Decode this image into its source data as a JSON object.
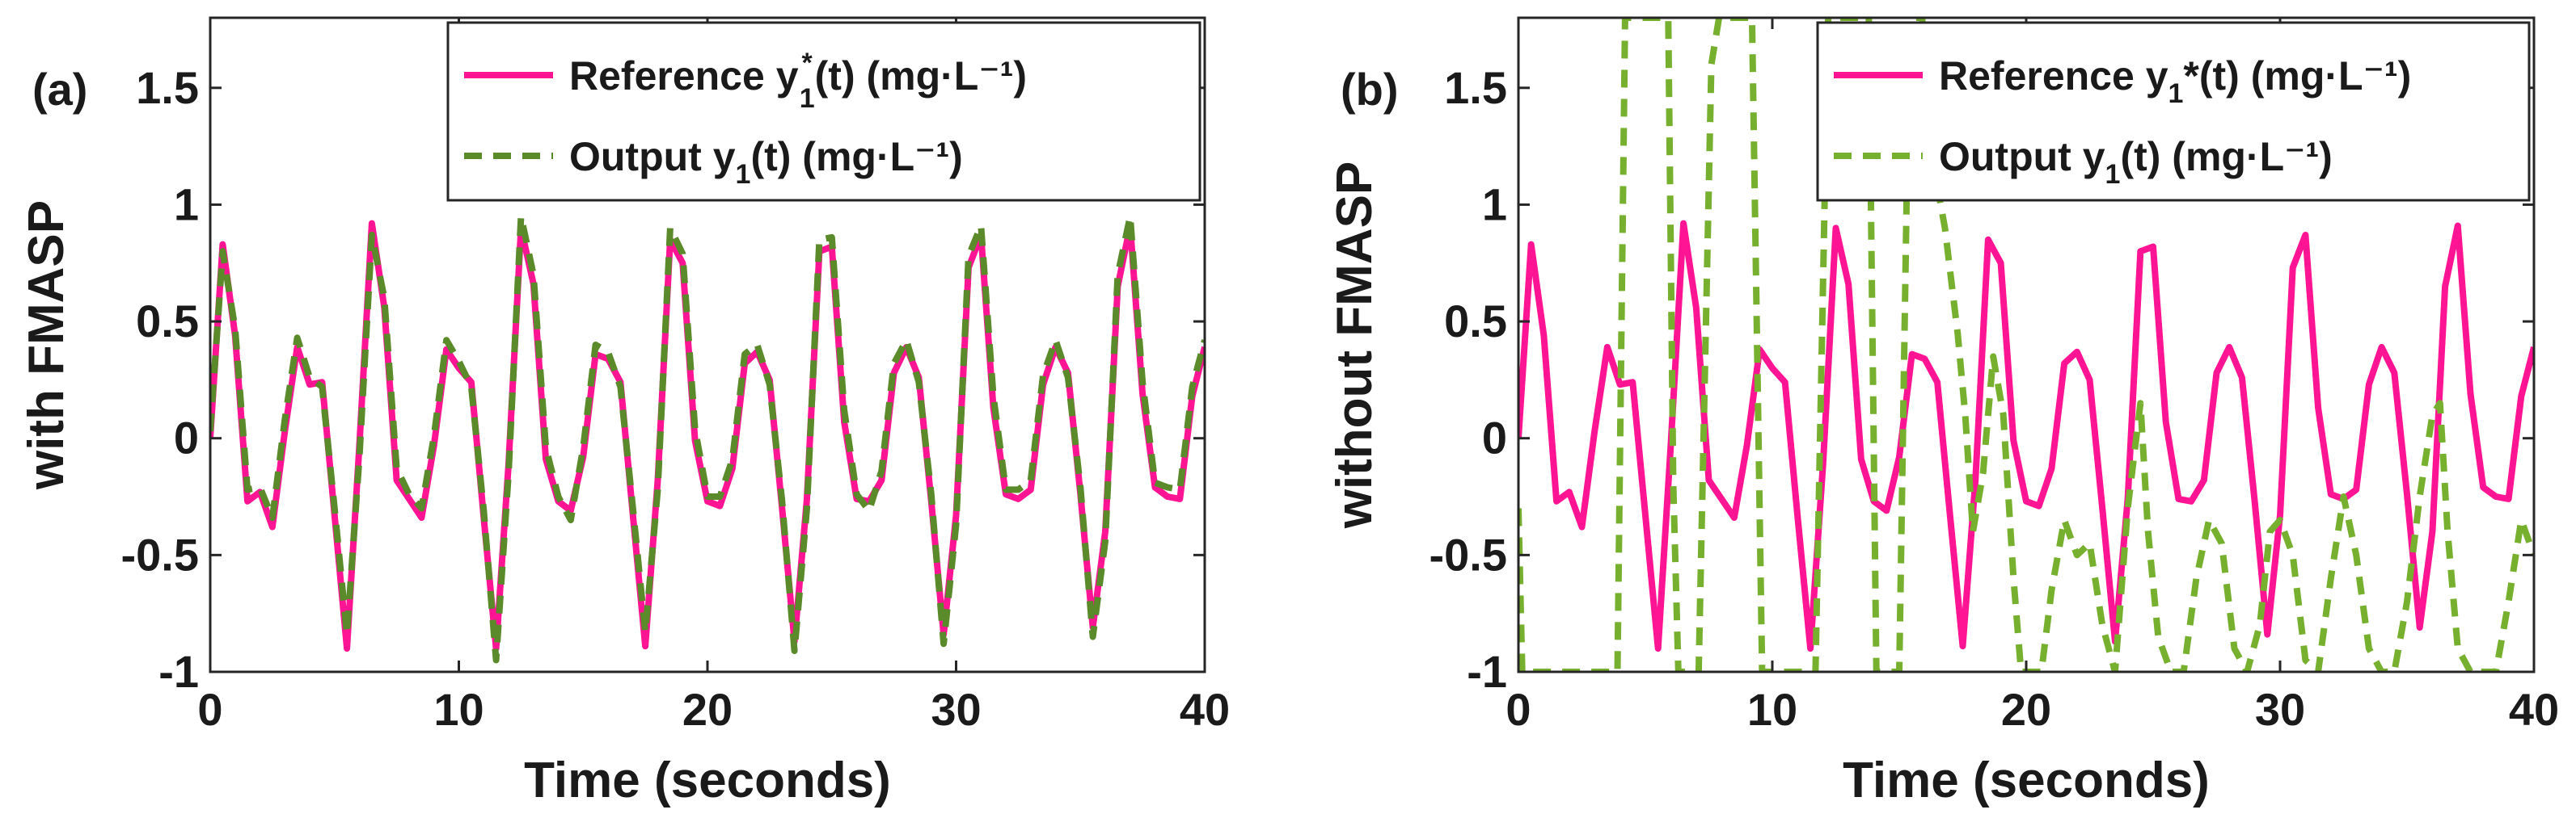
{
  "colors": {
    "reference": "#ff1493",
    "output_a": "#5a8a2a",
    "output_b": "#77b02f",
    "axis": "#262626"
  },
  "chart_data": [
    {
      "type": "line",
      "panel_label": "(a)",
      "xlabel": "Time (seconds)",
      "ylabel": "with FMASP",
      "xlim": [
        0,
        40
      ],
      "ylim": [
        -1,
        1.8
      ],
      "x_ticks": [
        0,
        10,
        20,
        30,
        40
      ],
      "x_tick_labels": [
        "0",
        "10",
        "20",
        "30",
        "40"
      ],
      "y_ticks": [
        -1,
        -0.5,
        0,
        0.5,
        1,
        1.5
      ],
      "y_tick_labels": [
        "-1",
        "-0.5",
        "0",
        "0.5",
        "1",
        "1.5"
      ],
      "grid": false,
      "legend_position": "top-right",
      "legend": [
        {
          "label_prefix": "Reference y",
          "label_sup": "*",
          "label_sub": "1",
          "label_suffix": "(t) (mg·L⁻¹)",
          "style": "solid"
        },
        {
          "label_prefix": "Output y",
          "label_sub": "1",
          "label_suffix": "(t) (mg·L⁻¹)",
          "style": "dashed"
        }
      ],
      "series": [
        {
          "name": "Reference",
          "style": "solid",
          "x": [
            0,
            0.5,
            1,
            1.5,
            2,
            2.5,
            3,
            3.5,
            4,
            4.5,
            5,
            5.5,
            6,
            6.5,
            7,
            7.5,
            8,
            8.5,
            9,
            9.5,
            10,
            10.5,
            11,
            11.5,
            12,
            12.5,
            13,
            13.5,
            14,
            14.5,
            15,
            15.5,
            16,
            16.5,
            17,
            17.5,
            18,
            18.5,
            19,
            19.5,
            20,
            20.5,
            21,
            21.5,
            22,
            22.5,
            23,
            23.5,
            24,
            24.5,
            25,
            25.5,
            26,
            26.5,
            27,
            27.5,
            28,
            28.5,
            29,
            29.5,
            30,
            30.5,
            31,
            31.5,
            32,
            32.5,
            33,
            33.5,
            34,
            34.5,
            35,
            35.5,
            36,
            36.5,
            37,
            37.5,
            38,
            38.5,
            39,
            39.5,
            40
          ],
          "y": [
            0,
            0.83,
            0.44,
            -0.27,
            -0.23,
            -0.38,
            0.03,
            0.39,
            0.23,
            0.24,
            -0.33,
            -0.9,
            -0.03,
            0.92,
            0.56,
            -0.18,
            -0.26,
            -0.34,
            -0.03,
            0.38,
            0.3,
            0.24,
            -0.34,
            -0.9,
            -0.11,
            0.9,
            0.66,
            -0.09,
            -0.27,
            -0.31,
            -0.08,
            0.36,
            0.34,
            0.24,
            -0.33,
            -0.89,
            -0.18,
            0.85,
            0.75,
            -0.01,
            -0.27,
            -0.29,
            -0.13,
            0.32,
            0.37,
            0.25,
            -0.3,
            -0.87,
            -0.26,
            0.8,
            0.82,
            0.07,
            -0.26,
            -0.27,
            -0.18,
            0.28,
            0.39,
            0.26,
            -0.27,
            -0.84,
            -0.33,
            0.73,
            0.87,
            0.13,
            -0.24,
            -0.26,
            -0.22,
            0.23,
            0.39,
            0.28,
            -0.24,
            -0.81,
            -0.4,
            0.65,
            0.91,
            0.19,
            -0.21,
            -0.25,
            -0.26,
            0.18,
            0.39
          ]
        },
        {
          "name": "Output",
          "style": "dashed",
          "x": [
            0,
            0.5,
            1,
            1.5,
            2,
            2.5,
            3,
            3.5,
            4,
            4.5,
            5,
            5.5,
            6,
            6.5,
            7,
            7.5,
            8,
            8.5,
            9,
            9.5,
            10,
            10.5,
            11,
            11.5,
            12,
            12.5,
            13,
            13.5,
            14,
            14.5,
            15,
            15.5,
            16,
            16.5,
            17,
            17.5,
            18,
            18.5,
            19,
            19.5,
            20,
            20.5,
            21,
            21.5,
            22,
            22.5,
            23,
            23.5,
            24,
            24.5,
            25,
            25.5,
            26,
            26.5,
            27,
            27.5,
            28,
            28.5,
            29,
            29.5,
            30,
            30.5,
            31,
            31.5,
            32,
            32.5,
            33,
            33.5,
            34,
            34.5,
            35,
            35.5,
            36,
            36.5,
            37,
            37.5,
            38,
            38.5,
            39,
            39.5,
            40
          ],
          "y": [
            0.03,
            0.8,
            0.47,
            -0.22,
            -0.21,
            -0.34,
            0.08,
            0.43,
            0.26,
            0.22,
            -0.3,
            -0.84,
            -0.08,
            0.87,
            0.6,
            -0.13,
            -0.24,
            -0.3,
            0.01,
            0.42,
            0.33,
            0.22,
            -0.31,
            -0.95,
            -0.15,
            0.95,
            0.7,
            -0.04,
            -0.25,
            -0.35,
            -0.04,
            0.4,
            0.37,
            0.22,
            -0.3,
            -0.83,
            -0.22,
            0.9,
            0.79,
            0.04,
            -0.25,
            -0.25,
            -0.09,
            0.36,
            0.4,
            0.23,
            -0.27,
            -0.91,
            -0.3,
            0.85,
            0.86,
            0.12,
            -0.24,
            -0.31,
            -0.14,
            0.32,
            0.42,
            0.24,
            -0.24,
            -0.88,
            -0.37,
            0.78,
            0.91,
            0.18,
            -0.22,
            -0.22,
            -0.18,
            0.27,
            0.42,
            0.26,
            -0.21,
            -0.85,
            -0.44,
            0.7,
            0.95,
            0.24,
            -0.19,
            -0.21,
            -0.22,
            0.22,
            0.42
          ]
        }
      ]
    },
    {
      "type": "line",
      "panel_label": "(b)",
      "xlabel": "Time (seconds)",
      "ylabel": "without FMASP",
      "xlim": [
        0,
        40
      ],
      "ylim": [
        -1,
        1.8
      ],
      "x_ticks": [
        0,
        10,
        20,
        30,
        40
      ],
      "x_tick_labels": [
        "0",
        "10",
        "20",
        "30",
        "40"
      ],
      "y_ticks": [
        -1,
        -0.5,
        0,
        0.5,
        1,
        1.5
      ],
      "y_tick_labels": [
        "-1",
        "-0.5",
        "0",
        "0.5",
        "1",
        "1.5"
      ],
      "grid": false,
      "legend_position": "top-right",
      "legend": [
        {
          "label_prefix": "Reference y",
          "label_sub": "1",
          "label_suffix": "*(t) (mg·L⁻¹)",
          "style": "solid"
        },
        {
          "label_prefix": "Output y",
          "label_sub": "1",
          "label_suffix": "(t) (mg·L⁻¹)",
          "style": "dashed"
        }
      ],
      "series": [
        {
          "name": "Reference",
          "style": "solid",
          "x": [
            0,
            0.5,
            1,
            1.5,
            2,
            2.5,
            3,
            3.5,
            4,
            4.5,
            5,
            5.5,
            6,
            6.5,
            7,
            7.5,
            8,
            8.5,
            9,
            9.5,
            10,
            10.5,
            11,
            11.5,
            12,
            12.5,
            13,
            13.5,
            14,
            14.5,
            15,
            15.5,
            16,
            16.5,
            17,
            17.5,
            18,
            18.5,
            19,
            19.5,
            20,
            20.5,
            21,
            21.5,
            22,
            22.5,
            23,
            23.5,
            24,
            24.5,
            25,
            25.5,
            26,
            26.5,
            27,
            27.5,
            28,
            28.5,
            29,
            29.5,
            30,
            30.5,
            31,
            31.5,
            32,
            32.5,
            33,
            33.5,
            34,
            34.5,
            35,
            35.5,
            36,
            36.5,
            37,
            37.5,
            38,
            38.5,
            39,
            39.5,
            40
          ],
          "y": [
            0,
            0.83,
            0.44,
            -0.27,
            -0.23,
            -0.38,
            0.03,
            0.39,
            0.23,
            0.24,
            -0.33,
            -0.9,
            -0.03,
            0.92,
            0.56,
            -0.18,
            -0.26,
            -0.34,
            -0.03,
            0.38,
            0.3,
            0.24,
            -0.34,
            -0.9,
            -0.11,
            0.9,
            0.66,
            -0.09,
            -0.27,
            -0.31,
            -0.08,
            0.36,
            0.34,
            0.24,
            -0.33,
            -0.89,
            -0.18,
            0.85,
            0.75,
            -0.01,
            -0.27,
            -0.29,
            -0.13,
            0.32,
            0.37,
            0.25,
            -0.3,
            -0.87,
            -0.26,
            0.8,
            0.82,
            0.07,
            -0.26,
            -0.27,
            -0.18,
            0.28,
            0.39,
            0.26,
            -0.27,
            -0.84,
            -0.33,
            0.73,
            0.87,
            0.13,
            -0.24,
            -0.26,
            -0.22,
            0.23,
            0.39,
            0.28,
            -0.24,
            -0.81,
            -0.4,
            0.65,
            0.91,
            0.19,
            -0.21,
            -0.25,
            -0.26,
            0.18,
            0.39
          ]
        },
        {
          "name": "Output",
          "style": "dashed",
          "x": [
            0,
            0.15,
            0.3,
            0.6,
            1,
            1.5,
            2,
            2.5,
            3,
            3.5,
            3.9,
            4.2,
            5,
            5.4,
            5.6,
            5.9,
            6.1,
            6.3,
            6.6,
            7.1,
            7.6,
            7.9,
            8.3,
            8.7,
            9.2,
            9.6,
            9.9,
            10.4,
            11,
            11.5,
            11.7,
            12.2,
            12.8,
            13.3,
            13.8,
            14.1,
            14.6,
            15,
            15.4,
            15.6,
            15.9,
            16.3,
            16.8,
            17.3,
            17.6,
            17.9,
            18.3,
            18.7,
            19.1,
            19.5,
            19.8,
            20.2,
            20.6,
            21,
            21.5,
            22,
            22.5,
            23,
            23.5,
            24,
            24.5,
            24.8,
            25.2,
            25.7,
            26.2,
            26.7,
            27.2,
            27.7,
            28.2,
            28.7,
            29.2,
            29.6,
            30,
            30.5,
            31,
            31.5,
            32,
            32.5,
            33,
            33.5,
            34,
            34.5,
            35,
            35.5,
            36,
            36.3,
            36.6,
            37,
            37.5,
            38,
            38.5,
            39,
            39.5,
            40
          ],
          "y": [
            -0.3,
            -1,
            -1,
            -1,
            -1,
            -1,
            -1,
            -1,
            -1,
            -1,
            -1,
            1.8,
            1.8,
            1.8,
            1.8,
            1.8,
            -0.2,
            -1,
            -1,
            -1,
            1.6,
            1.8,
            1.8,
            1.8,
            1.8,
            -1,
            -1,
            -1,
            -1,
            -1,
            -1,
            1.8,
            1.8,
            1.8,
            1.8,
            -1,
            -1,
            -1,
            1.8,
            1.8,
            1.8,
            1.2,
            0.9,
            0.45,
            0.1,
            -0.4,
            -0.15,
            0.35,
            0.1,
            -0.6,
            -1,
            -1,
            -1,
            -0.65,
            -0.35,
            -0.5,
            -0.45,
            -0.8,
            -1,
            -0.3,
            0.15,
            -0.4,
            -0.85,
            -1,
            -1,
            -0.6,
            -0.35,
            -0.45,
            -0.9,
            -1,
            -0.8,
            -0.4,
            -0.35,
            -0.5,
            -0.95,
            -1,
            -0.6,
            -0.25,
            -0.5,
            -0.9,
            -1,
            -1,
            -0.7,
            -0.25,
            0.1,
            0.15,
            -0.4,
            -0.9,
            -1,
            -1,
            -1,
            -0.7,
            -0.35,
            -0.5
          ]
        }
      ]
    }
  ]
}
